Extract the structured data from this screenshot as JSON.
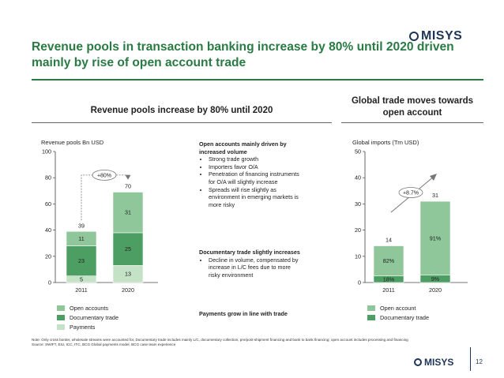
{
  "header": {
    "title": "Revenue pools in transaction banking increase by 80% until 2020 driven mainly by rise of open account trade",
    "logo": "MISYS"
  },
  "left_panel": {
    "heading": "Revenue pools increase by 80% until 2020",
    "axis_label": "Revenue pools Bn USD"
  },
  "right_panel": {
    "heading": "Global trade moves towards open account",
    "axis_label": "Global imports (Trn USD)"
  },
  "notes": [
    {
      "heading": "Open accounts mainly driven by increased volume",
      "bullets": [
        "Strong trade growth",
        "Importers favor O/A",
        "Penetration of financing instruments for O/A will slightly increase",
        "Spreads will rise slightly as environment in emerging markets is more risky"
      ]
    },
    {
      "heading": "Documentary trade slightly increases",
      "bullets": [
        "Decline in volume, compensated by increase in L/C fees due to more risky environment"
      ]
    },
    {
      "heading": "Payments grow in line with trade",
      "bullets": []
    }
  ],
  "footnote": "Note: Only cross border, wholesale streams were accounted for, Documentary trade includes mainly L/C, documentary collection, pre/post-shipment financing and bank to bank financing; open account includes processing and financing\nSource: SWIFT, EIU, ICC, ITC, BCG Global payments model, BCG case team experience",
  "footer": {
    "logo": "MISYS",
    "page": "12"
  },
  "colors": {
    "title_green": "#2a7a44",
    "open_accounts": "#8fc79a",
    "documentary_trade": "#4d9e62",
    "payments": "#c3e2c6",
    "navy": "#1d3557"
  },
  "chart_data": [
    {
      "type": "bar",
      "stacked": true,
      "categories": [
        "2011",
        "2020"
      ],
      "ylabel": "Revenue pools Bn USD",
      "ylim": [
        0,
        100
      ],
      "yticks": [
        0,
        20,
        40,
        60,
        80,
        100
      ],
      "series": [
        {
          "name": "Payments",
          "values": [
            5,
            13
          ],
          "labels": [
            "5",
            "13"
          ],
          "color": "#c3e2c6"
        },
        {
          "name": "Documentary trade",
          "values": [
            23,
            25
          ],
          "labels": [
            "23",
            "25"
          ],
          "color": "#4d9e62"
        },
        {
          "name": "Open accounts",
          "values": [
            11,
            31
          ],
          "labels": [
            "11",
            "31"
          ],
          "color": "#8fc79a"
        }
      ],
      "totals": [
        39,
        70
      ],
      "total_labels": [
        "39",
        "70"
      ],
      "annotation": "+80%",
      "legend": [
        "Open accounts",
        "Documentary trade",
        "Payments"
      ],
      "legend_placement": "bottom-left"
    },
    {
      "type": "bar",
      "stacked": true,
      "categories": [
        "2011",
        "2020"
      ],
      "ylabel": "Global imports (Trn USD)",
      "ylim": [
        0,
        50
      ],
      "yticks": [
        0,
        10,
        20,
        30,
        40,
        50
      ],
      "series": [
        {
          "name": "Documentary trade",
          "values": [
            2.5,
            2.8
          ],
          "labels": [
            "18%",
            "9%"
          ],
          "color": "#4d9e62"
        },
        {
          "name": "Open account",
          "values": [
            11.5,
            28.2
          ],
          "labels": [
            "82%",
            "91%"
          ],
          "color": "#8fc79a"
        }
      ],
      "totals": [
        14,
        31
      ],
      "total_labels": [
        "14",
        "31"
      ],
      "annotation": "+8.7%",
      "legend": [
        "Open account",
        "Documentary trade"
      ],
      "legend_placement": "bottom-left"
    }
  ]
}
